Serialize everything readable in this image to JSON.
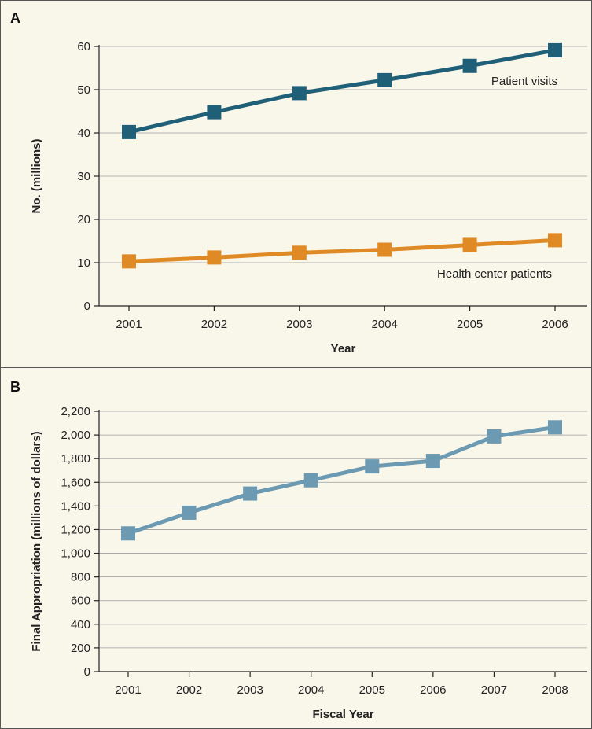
{
  "chart_data": [
    {
      "panel": "A",
      "type": "line",
      "xlabel": "Year",
      "ylabel": "No. (millions)",
      "categories": [
        "2001",
        "2002",
        "2003",
        "2004",
        "2005",
        "2006"
      ],
      "ylim": [
        0,
        60
      ],
      "yticks": [
        "0",
        "10",
        "20",
        "30",
        "40",
        "50",
        "60"
      ],
      "grid": true,
      "series": [
        {
          "name": "Patient visits",
          "color": "#1f5f77",
          "values": [
            40.2,
            44.8,
            49.2,
            52.2,
            55.5,
            59.1
          ]
        },
        {
          "name": "Health center patients",
          "color": "#e08a26",
          "values": [
            10.3,
            11.2,
            12.3,
            13.0,
            14.1,
            15.2
          ]
        }
      ]
    },
    {
      "panel": "B",
      "type": "line",
      "xlabel": "Fiscal Year",
      "ylabel": "Final Appropriation (millions of dollars)",
      "categories": [
        "2001",
        "2002",
        "2003",
        "2004",
        "2005",
        "2006",
        "2007",
        "2008"
      ],
      "ylim": [
        0,
        2200
      ],
      "yticks": [
        "0",
        "200",
        "400",
        "600",
        "800",
        "1,000",
        "1,200",
        "1,400",
        "1,600",
        "1,800",
        "2,000",
        "2,200"
      ],
      "grid": true,
      "series": [
        {
          "color": "#6b9ab2",
          "values": [
            1168,
            1343,
            1505,
            1617,
            1734,
            1781,
            1988,
            2065
          ]
        }
      ]
    }
  ]
}
